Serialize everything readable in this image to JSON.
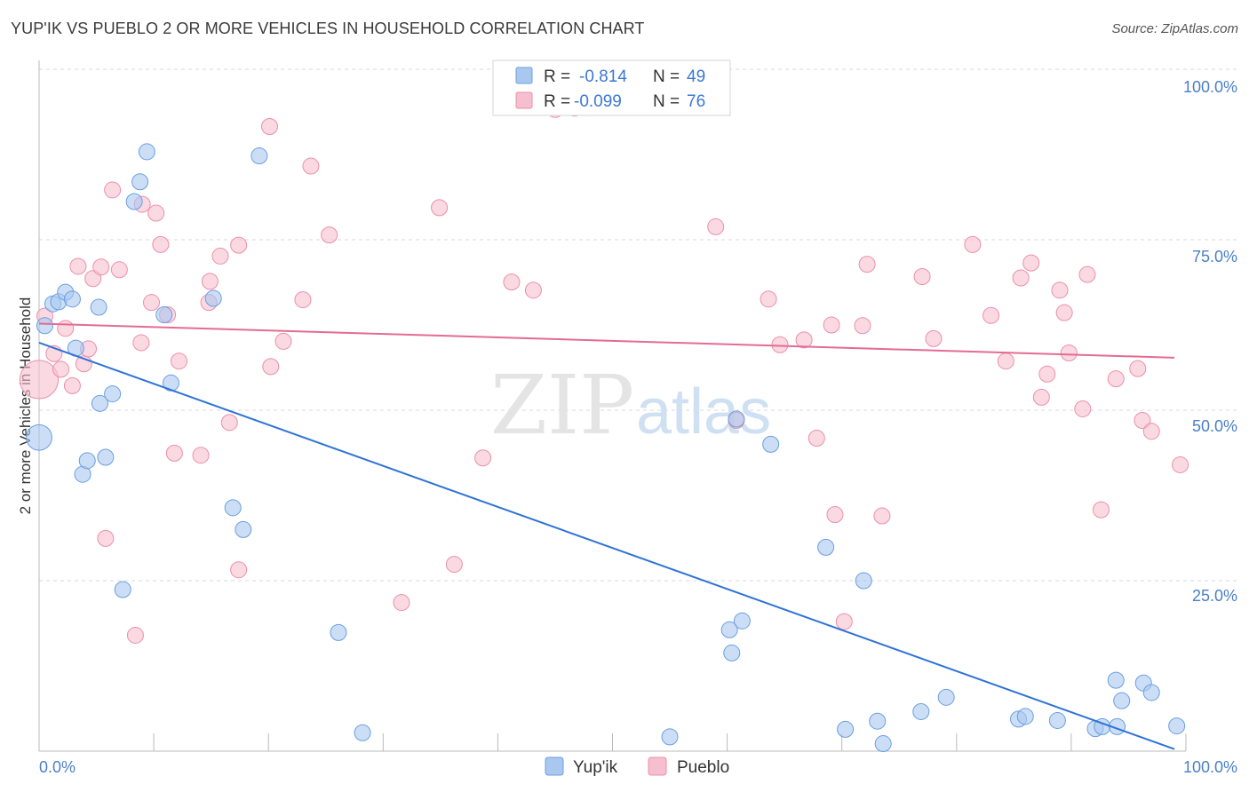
{
  "title": "YUP'IK VS PUEBLO 2 OR MORE VEHICLES IN HOUSEHOLD CORRELATION CHART",
  "source": "Source: ZipAtlas.com",
  "watermark": {
    "zip": "ZIP",
    "atlas": "atlas"
  },
  "colors": {
    "yupik_fill": "#a9c8f0",
    "yupik_stroke": "#6a9fe0",
    "yupik_line": "#2f73d6",
    "pueblo_fill": "#f6bfd0",
    "pueblo_stroke": "#ec8fab",
    "pueblo_line": "#e46b93",
    "grid": "#d9d9d9",
    "tick_label": "#4a7fc8"
  },
  "stats_legend": {
    "r_label": "R =",
    "n_label": "N =",
    "rows": [
      {
        "series": "Yup'ik",
        "r": "-0.814",
        "n": "49"
      },
      {
        "series": "Pueblo",
        "r": "-0.099",
        "n": "76"
      }
    ]
  },
  "chart_data": {
    "type": "scatter",
    "title": "YUP'IK VS PUEBLO 2 OR MORE VEHICLES IN HOUSEHOLD CORRELATION CHART",
    "xlabel": "",
    "ylabel": "2 or more Vehicles in Household",
    "xlim": [
      0,
      100
    ],
    "ylim": [
      0,
      100
    ],
    "x_tick_labels": [
      "0.0%",
      "100.0%"
    ],
    "y_tick_labels": [
      {
        "value": 100,
        "label": "100.0%"
      },
      {
        "value": 75,
        "label": "75.0%"
      },
      {
        "value": 50,
        "label": "50.0%"
      },
      {
        "value": 25,
        "label": "25.0%"
      }
    ],
    "legend": [
      "Yup'ik",
      "Pueblo"
    ],
    "series": [
      {
        "name": "Yup'ik",
        "trend": {
          "x": [
            0,
            99
          ],
          "y": [
            59.9,
            0.3
          ]
        },
        "points": [
          [
            0.0,
            46.0,
            1.6
          ],
          [
            0.5,
            62.4,
            1
          ],
          [
            1.2,
            65.6,
            1
          ],
          [
            1.7,
            65.9,
            1
          ],
          [
            2.3,
            67.3,
            1
          ],
          [
            2.9,
            66.3,
            1
          ],
          [
            3.2,
            59.1,
            1
          ],
          [
            3.8,
            40.6,
            1
          ],
          [
            4.2,
            42.6,
            1
          ],
          [
            5.2,
            65.1,
            1
          ],
          [
            5.3,
            51.0,
            1
          ],
          [
            5.8,
            43.1,
            1
          ],
          [
            6.4,
            52.4,
            1
          ],
          [
            7.3,
            23.7,
            1
          ],
          [
            8.3,
            80.6,
            1
          ],
          [
            8.8,
            83.5,
            1
          ],
          [
            9.4,
            87.9,
            1
          ],
          [
            10.9,
            64.0,
            1
          ],
          [
            11.5,
            54.0,
            1
          ],
          [
            15.2,
            66.4,
            1
          ],
          [
            16.9,
            35.7,
            1
          ],
          [
            17.8,
            32.5,
            1
          ],
          [
            19.2,
            87.3,
            1
          ],
          [
            26.1,
            17.4,
            1
          ],
          [
            28.2,
            2.7,
            1
          ],
          [
            55.0,
            2.1,
            1
          ],
          [
            60.2,
            17.8,
            1
          ],
          [
            60.4,
            14.4,
            1
          ],
          [
            60.8,
            48.7,
            1
          ],
          [
            61.3,
            19.1,
            1
          ],
          [
            63.8,
            45.0,
            1
          ],
          [
            68.6,
            29.9,
            1
          ],
          [
            70.3,
            3.2,
            1
          ],
          [
            71.9,
            25.0,
            1
          ],
          [
            73.1,
            4.4,
            1
          ],
          [
            73.6,
            1.1,
            1
          ],
          [
            76.9,
            5.8,
            1
          ],
          [
            79.1,
            7.9,
            1
          ],
          [
            85.4,
            4.7,
            1
          ],
          [
            86.0,
            5.1,
            1
          ],
          [
            88.8,
            4.5,
            1
          ],
          [
            92.1,
            3.3,
            1
          ],
          [
            92.7,
            3.6,
            1
          ],
          [
            94.0,
            3.6,
            1
          ],
          [
            94.4,
            7.4,
            1
          ],
          [
            93.9,
            10.4,
            1
          ],
          [
            96.3,
            10.0,
            1
          ],
          [
            97.0,
            8.6,
            1
          ],
          [
            99.2,
            3.7,
            1
          ]
        ]
      },
      {
        "name": "Pueblo",
        "trend": {
          "x": [
            0,
            99
          ],
          "y": [
            62.7,
            57.7
          ]
        },
        "points": [
          [
            0.0,
            54.5,
            2.4
          ],
          [
            0.5,
            63.8,
            1
          ],
          [
            1.3,
            58.3,
            1
          ],
          [
            1.9,
            56.0,
            1
          ],
          [
            2.3,
            62.0,
            1
          ],
          [
            2.9,
            53.6,
            1
          ],
          [
            3.4,
            71.1,
            1
          ],
          [
            3.9,
            56.8,
            1
          ],
          [
            4.3,
            59.0,
            1
          ],
          [
            4.7,
            69.3,
            1
          ],
          [
            5.4,
            71.0,
            1
          ],
          [
            5.8,
            31.2,
            1
          ],
          [
            6.4,
            82.3,
            1
          ],
          [
            7.0,
            70.6,
            1
          ],
          [
            8.4,
            17.0,
            1
          ],
          [
            8.9,
            59.9,
            1
          ],
          [
            9.0,
            80.2,
            1
          ],
          [
            9.8,
            65.8,
            1
          ],
          [
            10.2,
            78.9,
            1
          ],
          [
            10.6,
            74.3,
            1
          ],
          [
            11.2,
            64.0,
            1
          ],
          [
            11.8,
            43.7,
            1
          ],
          [
            12.2,
            57.2,
            1
          ],
          [
            14.1,
            43.4,
            1
          ],
          [
            14.8,
            65.8,
            1
          ],
          [
            14.9,
            68.9,
            1
          ],
          [
            15.8,
            72.6,
            1
          ],
          [
            16.6,
            48.2,
            1
          ],
          [
            17.4,
            26.6,
            1
          ],
          [
            17.4,
            74.2,
            1
          ],
          [
            20.1,
            91.6,
            1
          ],
          [
            20.2,
            56.4,
            1
          ],
          [
            21.3,
            60.1,
            1
          ],
          [
            23.0,
            66.2,
            1
          ],
          [
            23.7,
            85.8,
            1
          ],
          [
            25.3,
            75.7,
            1
          ],
          [
            31.6,
            21.8,
            1
          ],
          [
            34.9,
            79.7,
            1
          ],
          [
            36.2,
            27.4,
            1
          ],
          [
            38.7,
            43.0,
            1
          ],
          [
            41.2,
            68.8,
            1
          ],
          [
            43.1,
            67.6,
            1
          ],
          [
            45.0,
            94.1,
            1
          ],
          [
            46.7,
            94.3,
            1
          ],
          [
            59.0,
            76.9,
            1
          ],
          [
            60.8,
            48.5,
            1
          ],
          [
            63.6,
            66.3,
            1
          ],
          [
            64.6,
            59.6,
            1
          ],
          [
            66.7,
            60.3,
            1
          ],
          [
            67.8,
            45.9,
            1
          ],
          [
            69.1,
            62.5,
            1
          ],
          [
            69.4,
            34.7,
            1
          ],
          [
            70.2,
            19.0,
            1
          ],
          [
            71.8,
            62.4,
            1
          ],
          [
            72.2,
            71.4,
            1
          ],
          [
            73.5,
            34.5,
            1
          ],
          [
            77.0,
            69.6,
            1
          ],
          [
            78.0,
            60.5,
            1
          ],
          [
            81.4,
            74.3,
            1
          ],
          [
            83.0,
            63.9,
            1
          ],
          [
            84.3,
            57.2,
            1
          ],
          [
            85.6,
            69.4,
            1
          ],
          [
            86.5,
            71.6,
            1
          ],
          [
            87.4,
            51.9,
            1
          ],
          [
            87.9,
            55.3,
            1
          ],
          [
            89.0,
            67.6,
            1
          ],
          [
            89.4,
            64.3,
            1
          ],
          [
            89.8,
            58.4,
            1
          ],
          [
            91.0,
            50.2,
            1
          ],
          [
            91.4,
            69.9,
            1
          ],
          [
            92.6,
            35.4,
            1
          ],
          [
            93.9,
            54.6,
            1
          ],
          [
            95.8,
            56.1,
            1
          ],
          [
            96.2,
            48.5,
            1
          ],
          [
            97.0,
            46.9,
            1
          ],
          [
            99.5,
            42.0,
            1
          ]
        ]
      }
    ]
  }
}
